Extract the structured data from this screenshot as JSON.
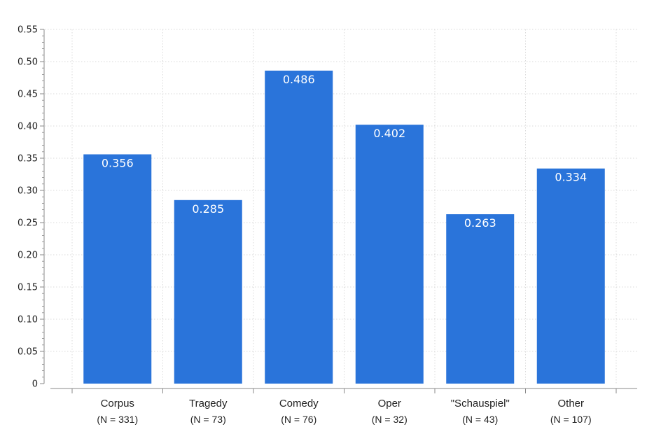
{
  "chart_data": {
    "type": "bar",
    "categories": [
      "Corpus",
      "Tragedy",
      "Comedy",
      "Oper",
      "\"Schauspiel\"",
      "Other"
    ],
    "category_counts": [
      "(N = 331)",
      "(N = 73)",
      "(N = 76)",
      "(N = 32)",
      "(N = 43)",
      "(N = 107)"
    ],
    "values": [
      0.356,
      0.285,
      0.486,
      0.402,
      0.263,
      0.334
    ],
    "data_labels": [
      "0.356",
      "0.285",
      "0.486",
      "0.402",
      "0.263",
      "0.334"
    ],
    "yticks": [
      0,
      0.05,
      0.1,
      0.15,
      0.2,
      0.25,
      0.3,
      0.35,
      0.4,
      0.45,
      0.5,
      0.55
    ],
    "ytick_labels": [
      "0",
      "0.05",
      "0.10",
      "0.15",
      "0.20",
      "0.25",
      "0.30",
      "0.35",
      "0.40",
      "0.45",
      "0.50",
      "0.55"
    ],
    "ylim": [
      0,
      0.55
    ],
    "title": "",
    "xlabel": "",
    "ylabel": "",
    "grid": "dotted",
    "bar_color": "#2a74da",
    "grid_color": "#d9d9d9",
    "axis_color": "#888888"
  }
}
